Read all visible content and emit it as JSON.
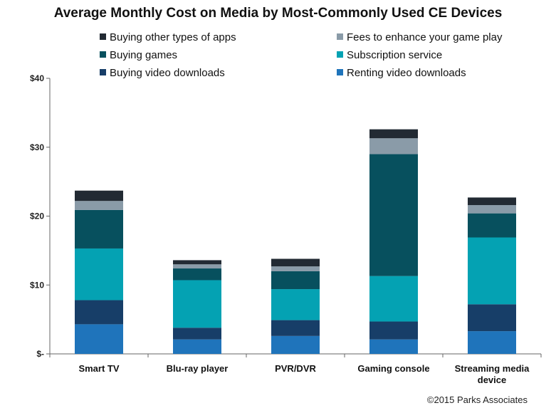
{
  "footer_text": "©2015 Parks Associates",
  "chart_data": {
    "type": "bar",
    "stacked": true,
    "title": "Average Monthly Cost on Media by Most-Commonly Used CE Devices",
    "xlabel": "",
    "ylabel": "",
    "ylim": [
      0,
      40
    ],
    "yticks": [
      0,
      10,
      20,
      30,
      40
    ],
    "ytick_labels": [
      "$-",
      "$10",
      "$20",
      "$30",
      "$40"
    ],
    "grid": false,
    "legend_position": "top",
    "categories": [
      [
        "Smart TV"
      ],
      [
        "Blu-ray player"
      ],
      [
        "PVR/DVR"
      ],
      [
        "Gaming console"
      ],
      [
        "Streaming media",
        "device"
      ]
    ],
    "series": [
      {
        "name": "Renting video downloads",
        "color": "#1f74bb",
        "values": [
          4.3,
          2.1,
          2.6,
          2.1,
          3.3
        ]
      },
      {
        "name": "Buying video downloads",
        "color": "#173e68",
        "values": [
          3.5,
          1.7,
          2.3,
          2.6,
          3.9
        ]
      },
      {
        "name": "Subscription service",
        "color": "#04a2b3",
        "values": [
          7.5,
          6.9,
          4.5,
          6.6,
          9.7
        ]
      },
      {
        "name": "Buying games",
        "color": "#07505e",
        "values": [
          5.6,
          1.7,
          2.6,
          17.7,
          3.5
        ]
      },
      {
        "name": "Fees to enhance your game play",
        "color": "#8a9ba8",
        "values": [
          1.3,
          0.6,
          0.7,
          2.3,
          1.2
        ]
      },
      {
        "name": "Buying other types of apps",
        "color": "#222a33",
        "values": [
          1.5,
          0.6,
          1.1,
          1.3,
          1.1
        ]
      }
    ],
    "legend_order": [
      "Buying other types of apps",
      "Fees to enhance your game play",
      "Buying games",
      "Subscription service",
      "Buying video downloads",
      "Renting video downloads"
    ]
  }
}
